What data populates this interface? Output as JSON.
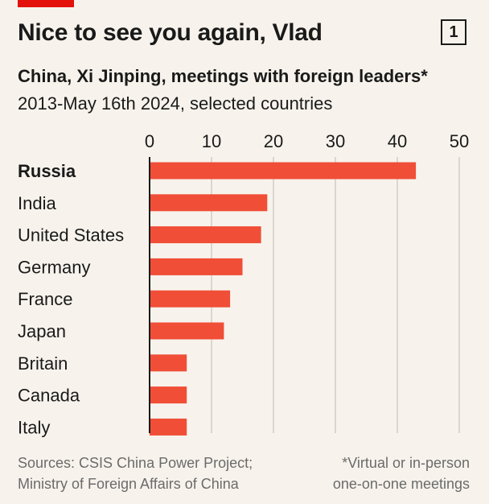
{
  "header": {
    "title": "Nice to see you again, Vlad",
    "badge": "1",
    "subtitle": "China, Xi Jinping, meetings with foreign leaders*",
    "subtitle2": "2013-May 16th 2024, selected countries"
  },
  "colors": {
    "bar": "#f04e37",
    "accent": "#e3120b",
    "grid": "#c9c4bc",
    "axis": "#1a1a1a"
  },
  "chart_data": {
    "type": "bar",
    "orientation": "horizontal",
    "categories": [
      "Russia",
      "India",
      "United States",
      "Germany",
      "France",
      "Japan",
      "Britain",
      "Canada",
      "Italy"
    ],
    "values": [
      43,
      19,
      18,
      15,
      13,
      12,
      6,
      6,
      6
    ],
    "highlighted_category": "Russia",
    "xlim": [
      0,
      50
    ],
    "xticks": [
      0,
      10,
      20,
      30,
      40,
      50
    ],
    "tick_labels": [
      "0",
      "10",
      "20",
      "30",
      "40",
      "50"
    ],
    "axis_position": "top",
    "grid": true
  },
  "footer": {
    "source_line1": "Sources: CSIS China Power Project;",
    "source_line2": "Ministry of Foreign Affairs of China",
    "note_line1": "*Virtual or in-person",
    "note_line2": "one-on-one meetings"
  }
}
